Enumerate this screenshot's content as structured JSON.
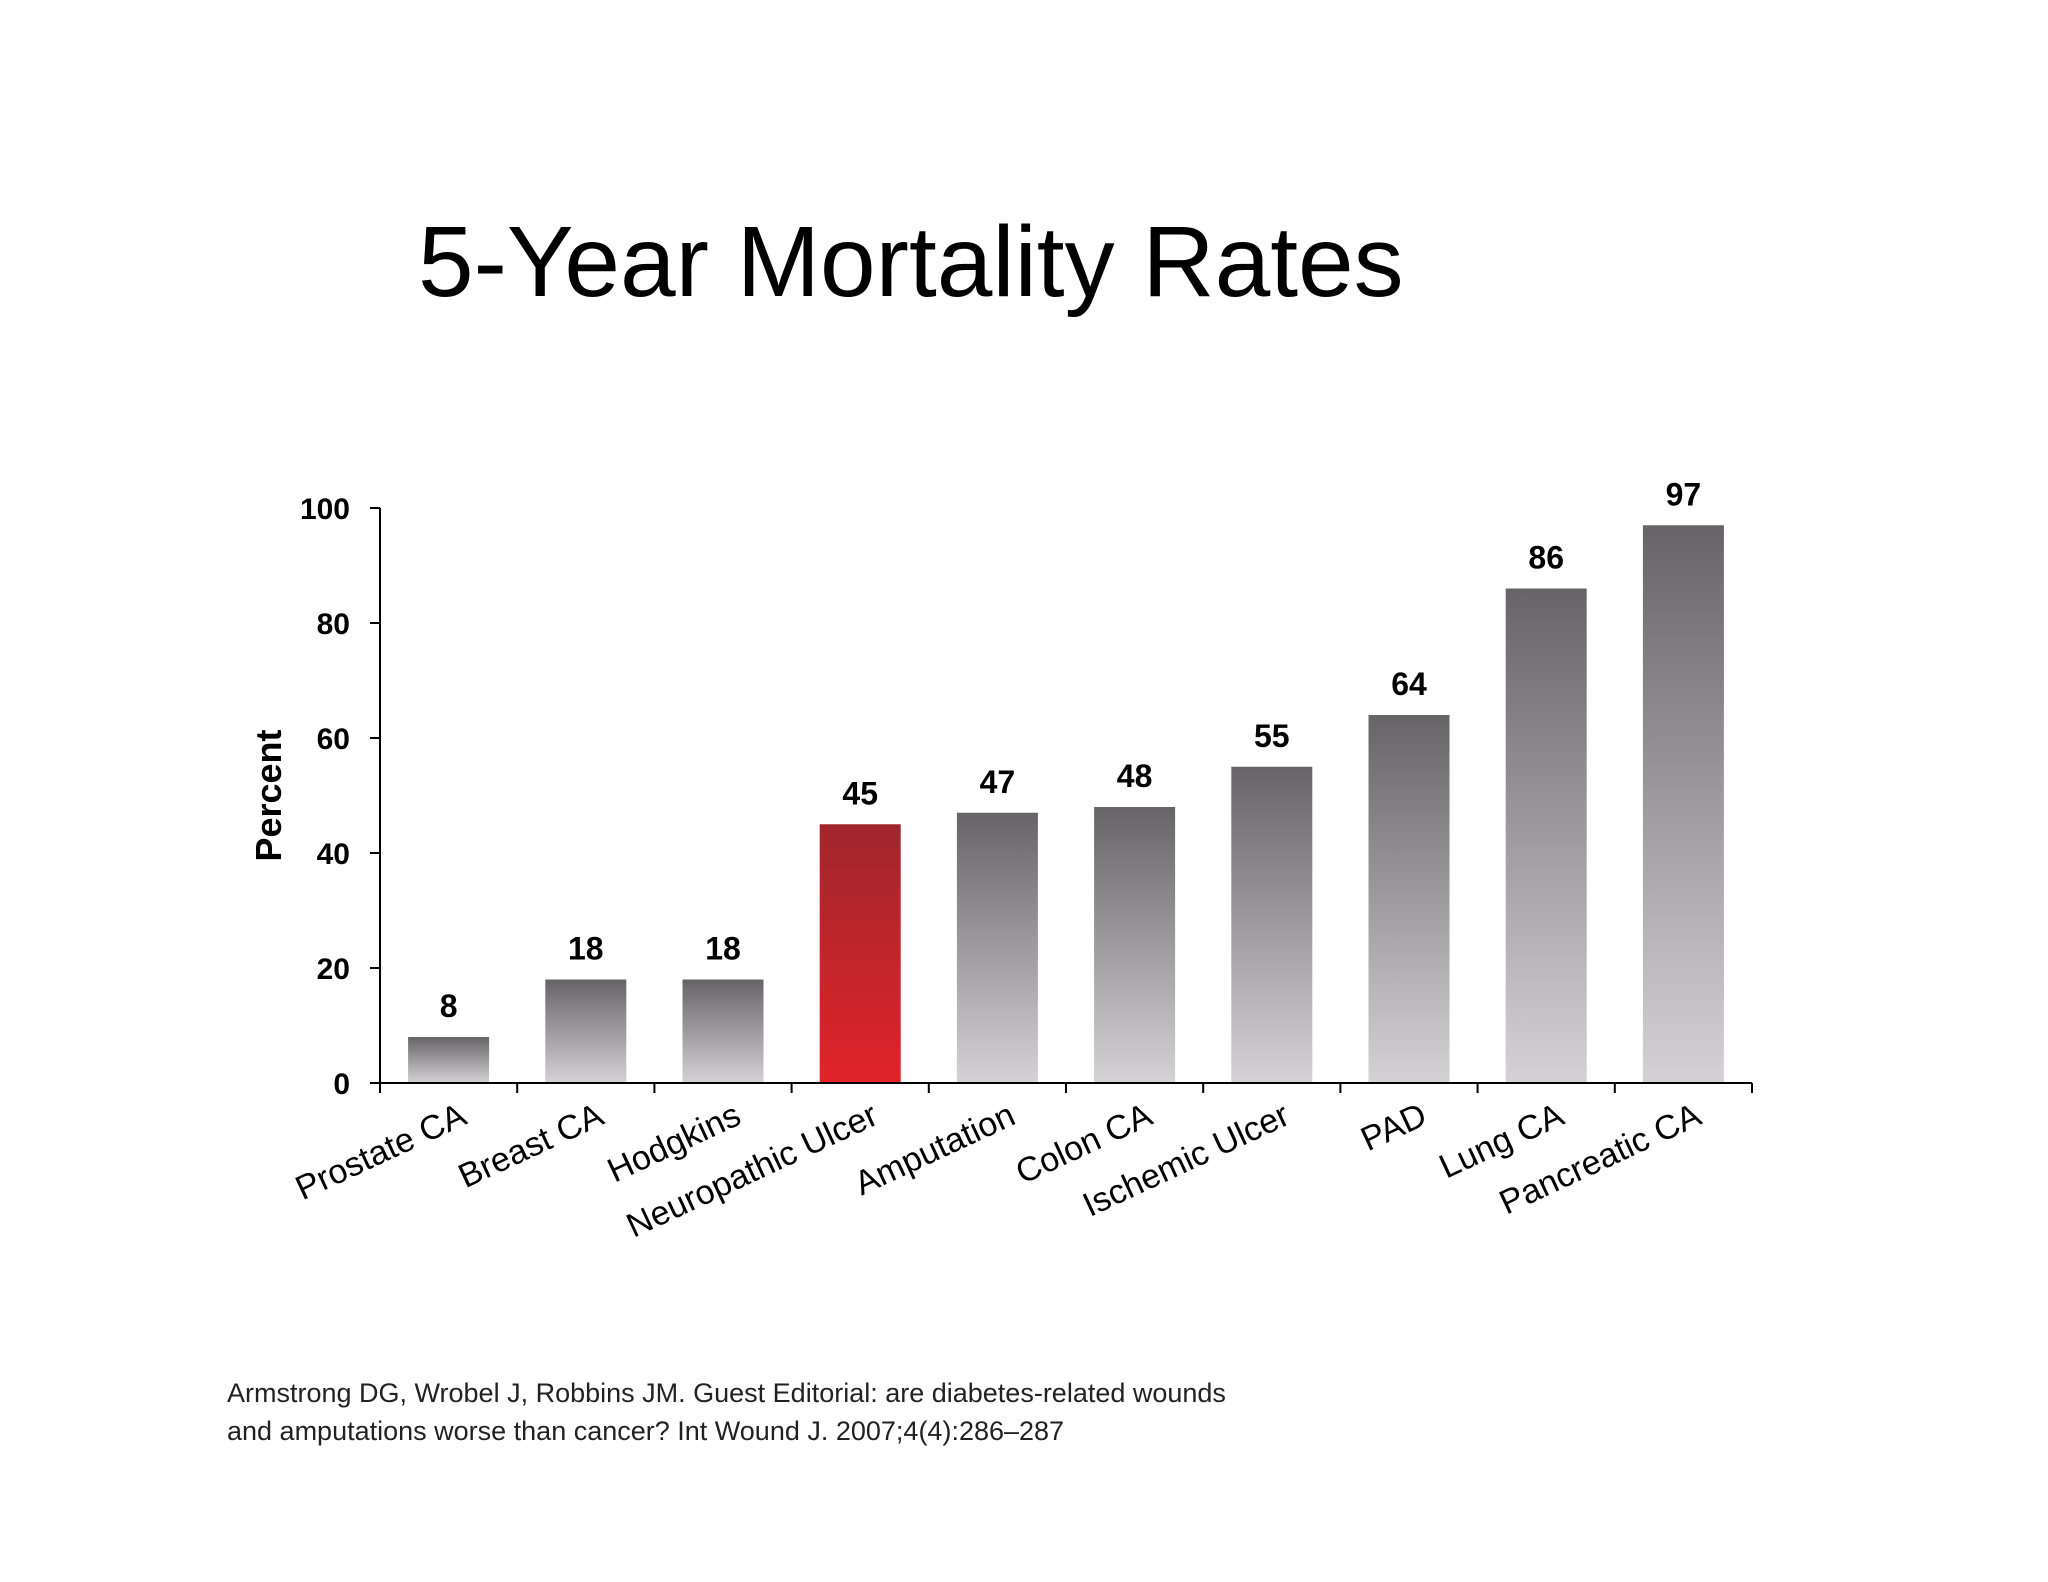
{
  "slide": {
    "title": "5-Year Mortality Rates",
    "citation_line1": "Armstrong DG, Wrobel J, Robbins JM. Guest Editorial: are diabetes-related wounds",
    "citation_line2": "and amputations worse than cancer? Int Wound J. 2007;4(4):286–287"
  },
  "chart_data": {
    "type": "bar",
    "title": "",
    "xlabel": "",
    "ylabel": "Percent",
    "ylim": [
      0,
      100
    ],
    "yticks": [
      0,
      20,
      40,
      60,
      80,
      100
    ],
    "categories": [
      "Prostate CA",
      "Breast CA",
      "Hodgkins",
      "Neuropathic Ulcer",
      "Amputation",
      "Colon CA",
      "Ischemic Ulcer",
      "PAD",
      "Lung CA",
      "Pancreatic CA"
    ],
    "values": [
      8,
      18,
      18,
      45,
      47,
      48,
      55,
      64,
      86,
      97
    ],
    "highlight_index": 3,
    "colors": {
      "bar_top": "#666466",
      "bar_bottom": "#d4d2d4",
      "highlight_top": "#a0262c",
      "highlight_bottom": "#e0242a",
      "axis": "#000000"
    },
    "grid": false,
    "legend": "none"
  }
}
